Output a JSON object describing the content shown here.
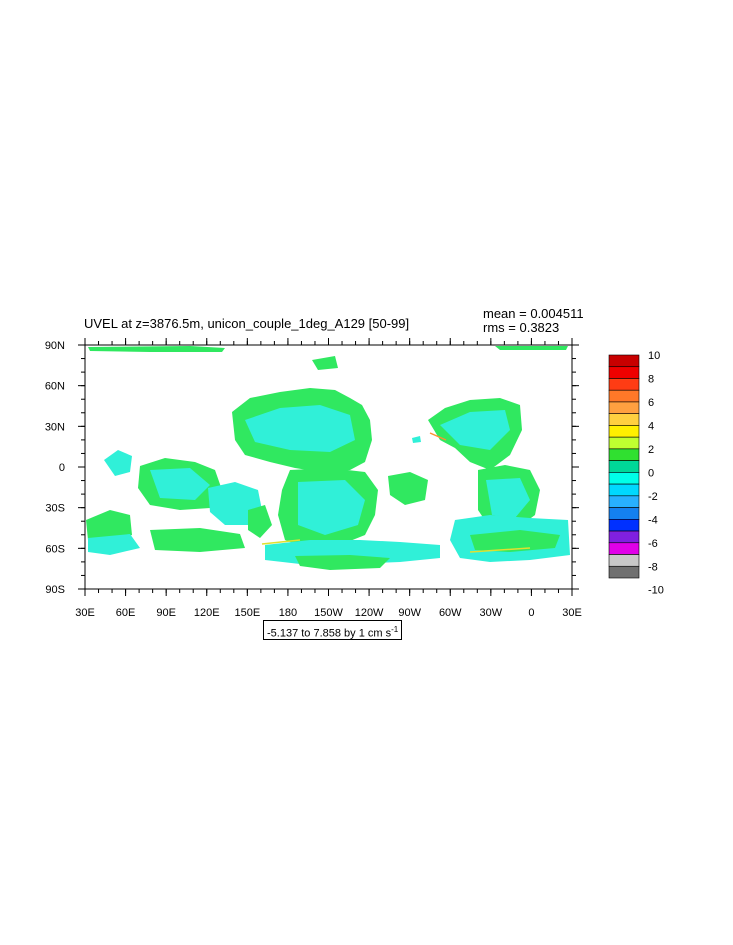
{
  "plot": {
    "title": "UVEL at z=3876.5m, unicon_couple_1deg_A129 [50-99]",
    "mean": "mean = 0.004511",
    "rms": "rms = 0.3823",
    "range_prefix": "-5.137 to 7.858 by 1 cm s",
    "range_exponent": "-1"
  },
  "axes": {
    "lat_labels": [
      "90N",
      "60N",
      "30N",
      "0",
      "30S",
      "60S",
      "90S"
    ],
    "lon_labels": [
      "30E",
      "60E",
      "90E",
      "120E",
      "150E",
      "180",
      "150W",
      "120W",
      "90W",
      "60W",
      "30W",
      "0",
      "30E"
    ]
  },
  "colorbar": {
    "labels": [
      "10",
      "8",
      "6",
      "4",
      "2",
      "0",
      "-2",
      "-4",
      "-6",
      "-8",
      "-10"
    ],
    "colors": [
      "#c80000",
      "#ee0000",
      "#ff3c14",
      "#ff7828",
      "#ffa040",
      "#ffd040",
      "#fff000",
      "#c0ff30",
      "#30e030",
      "#00d898",
      "#00ffe8",
      "#00d8ff",
      "#28b0ff",
      "#1480f0",
      "#0030ff",
      "#8020e0",
      "#e000e8",
      "#c8c8c8",
      "#707070"
    ]
  },
  "map_colors": {
    "green": "#30e860",
    "cyan": "#30f0d8",
    "yellow": "#e0e030",
    "orange": "#ff9030"
  }
}
